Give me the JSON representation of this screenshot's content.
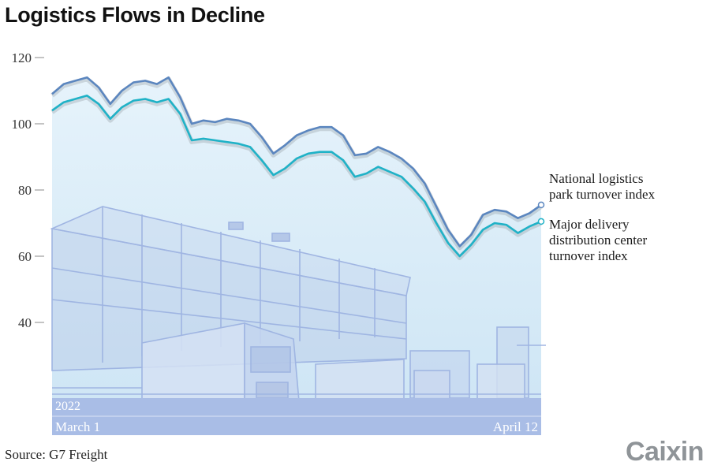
{
  "header": {
    "title": "Logistics Flows in Decline"
  },
  "footer": {
    "source": "Source: G7 Freight",
    "brand": "Caixin"
  },
  "colors": {
    "series1": "#5b86bf",
    "series2": "#1fb2c7",
    "band": "#a9bde6",
    "fill": "#d8ecf8"
  },
  "chart_data": {
    "type": "line",
    "title": "Logistics Flows in Decline",
    "year_label": "2022",
    "x_start_label": "March 1",
    "x_end_label": "April 12",
    "x": [
      "Mar 1",
      "Mar 2",
      "Mar 3",
      "Mar 4",
      "Mar 5",
      "Mar 6",
      "Mar 7",
      "Mar 8",
      "Mar 9",
      "Mar 10",
      "Mar 11",
      "Mar 12",
      "Mar 13",
      "Mar 14",
      "Mar 15",
      "Mar 16",
      "Mar 17",
      "Mar 18",
      "Mar 19",
      "Mar 20",
      "Mar 21",
      "Mar 22",
      "Mar 23",
      "Mar 24",
      "Mar 25",
      "Mar 26",
      "Mar 27",
      "Mar 28",
      "Mar 29",
      "Mar 30",
      "Mar 31",
      "Apr 1",
      "Apr 2",
      "Apr 3",
      "Apr 4",
      "Apr 5",
      "Apr 6",
      "Apr 7",
      "Apr 8",
      "Apr 9",
      "Apr 10",
      "Apr 11",
      "Apr 12"
    ],
    "yticks": [
      40,
      60,
      80,
      100,
      120
    ],
    "ylim": [
      20,
      120
    ],
    "grid": false,
    "series": [
      {
        "name": "National logistics park turnover index",
        "label_lines": [
          "National logistics",
          "park turnover index"
        ],
        "values": [
          109,
          112,
          113,
          114,
          111,
          106,
          110,
          112.5,
          113,
          112,
          114,
          108,
          100,
          101,
          100.5,
          101.5,
          101,
          100,
          96,
          91,
          93.5,
          96.5,
          98,
          99,
          99,
          96.5,
          90.5,
          91,
          93,
          91.5,
          89.5,
          86.5,
          82,
          75,
          68,
          63,
          66.5,
          72.5,
          74,
          73.5,
          71.5,
          73,
          75.5
        ]
      },
      {
        "name": "Major delivery distribution center turnover index",
        "label_lines": [
          "Major delivery",
          "distribution center",
          "turnover index"
        ],
        "values": [
          104,
          106.5,
          107.5,
          108.5,
          106,
          101.5,
          105,
          107,
          107.5,
          106.5,
          107.5,
          103,
          95,
          95.5,
          95,
          94.5,
          94,
          93,
          89,
          84.5,
          86.5,
          89.5,
          91,
          91.5,
          91.5,
          89,
          84,
          85,
          87,
          85.5,
          84,
          80.5,
          76.5,
          70,
          64,
          60,
          63.5,
          68,
          70,
          69.5,
          67,
          69,
          70.5
        ]
      }
    ]
  }
}
